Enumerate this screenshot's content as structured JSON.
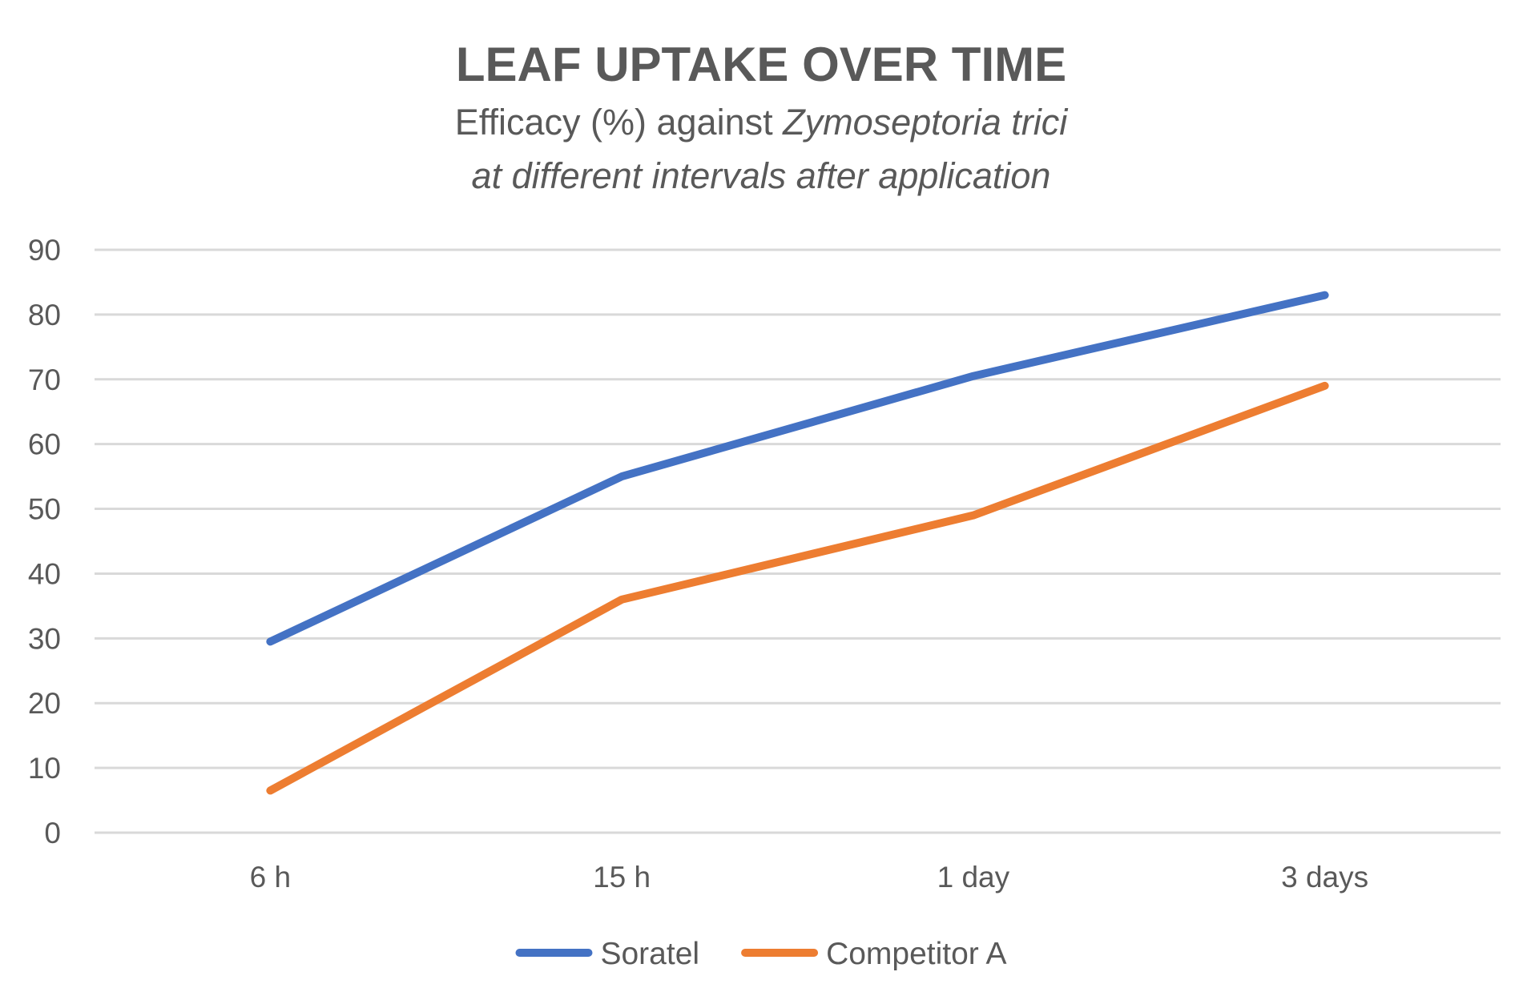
{
  "chart_data": {
    "type": "line",
    "title": "LEAF UPTAKE OVER TIME",
    "subtitle_line1_plain": "Efficacy (%) against ",
    "subtitle_line1_italic": "Zymoseptoria trici",
    "subtitle_line2_italic": "at different intervals after application",
    "categories": [
      "6 h",
      "15 h",
      "1 day",
      "3 days"
    ],
    "series": [
      {
        "name": "Soratel",
        "color": "#4472C4",
        "values": [
          29.5,
          55,
          70.5,
          83
        ]
      },
      {
        "name": "Competitor A",
        "color": "#ED7D31",
        "values": [
          6.5,
          36,
          49,
          69
        ]
      }
    ],
    "ylim": [
      0,
      90
    ],
    "yticks": [
      0,
      10,
      20,
      30,
      40,
      50,
      60,
      70,
      80,
      90
    ],
    "grid": true,
    "legend_position": "bottom"
  }
}
